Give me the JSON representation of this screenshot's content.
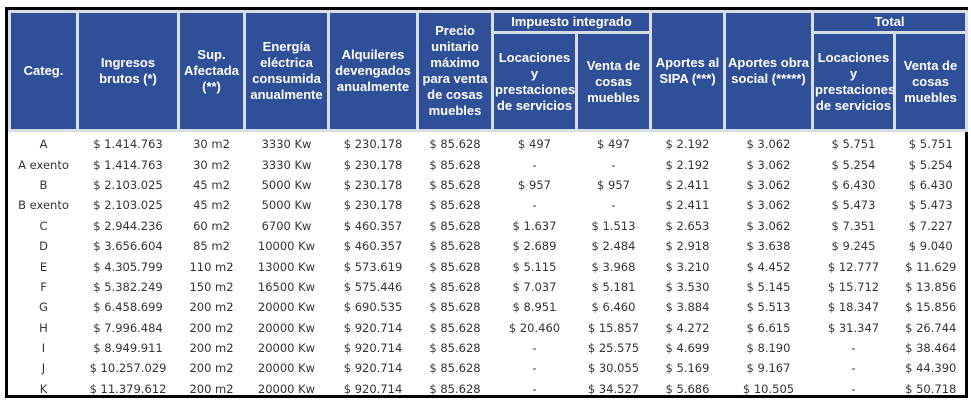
{
  "headers": {
    "categ": "Categ.",
    "ingresos": "Ingresos brutos (*)",
    "sup": "Sup. Afectada (**)",
    "energia": "Energía eléctrica consumida anualmente",
    "alquileres": "Alquileres devengados anualmente",
    "precio": "Precio unitario máximo para venta de cosas muebles",
    "impuesto_group": "Impuesto integrado",
    "imp_locaciones": "Locaciones y prestaciones de servicios",
    "imp_venta": "Venta de cosas muebles",
    "sipa": "Aportes al SIPA (***)",
    "obra_social": "Aportes obra social (*****)",
    "total_group": "Total",
    "tot_locaciones": "Locaciones y prestaciones de servicios",
    "tot_venta": "Venta de cosas muebles"
  },
  "rows": [
    [
      "A",
      "$ 1.414.763",
      "30 m2",
      "3330 Kw",
      "$ 230.178",
      "$ 85.628",
      "$ 497",
      "$ 497",
      "$ 2.192",
      "$ 3.062",
      "$ 5.751",
      "$ 5.751"
    ],
    [
      "A exento",
      "$ 1.414.763",
      "30 m2",
      "3330 Kw",
      "$ 230.178",
      "$ 85.628",
      "-",
      "-",
      "$ 2.192",
      "$ 3.062",
      "$ 5.254",
      "$ 5.254"
    ],
    [
      "B",
      "$ 2.103.025",
      "45 m2",
      "5000 Kw",
      "$ 230.178",
      "$ 85.628",
      "$ 957",
      "$ 957",
      "$ 2.411",
      "$ 3.062",
      "$ 6.430",
      "$ 6.430"
    ],
    [
      "B exento",
      "$ 2.103.025",
      "45 m2",
      "5000 Kw",
      "$ 230.178",
      "$ 85.628",
      "-",
      "-",
      "$ 2.411",
      "$ 3.062",
      "$ 5.473",
      "$ 5.473"
    ],
    [
      "C",
      "$ 2.944.236",
      "60 m2",
      "6700 Kw",
      "$ 460.357",
      "$ 85.628",
      "$ 1.637",
      "$ 1.513",
      "$ 2.653",
      "$ 3.062",
      "$ 7.351",
      "$ 7.227"
    ],
    [
      "D",
      "$ 3.656.604",
      "85 m2",
      "10000 Kw",
      "$ 460.357",
      "$ 85.628",
      "$ 2.689",
      "$ 2.484",
      "$ 2.918",
      "$ 3.638",
      "$ 9.245",
      "$ 9.040"
    ],
    [
      "E",
      "$ 4.305.799",
      "110 m2",
      "13000 Kw",
      "$ 573.619",
      "$ 85.628",
      "$ 5.115",
      "$ 3.968",
      "$ 3.210",
      "$ 4.452",
      "$ 12.777",
      "$ 11.629"
    ],
    [
      "F",
      "$ 5.382.249",
      "150 m2",
      "16500 Kw",
      "$ 575.446",
      "$ 85.628",
      "$ 7.037",
      "$ 5.181",
      "$ 3.530",
      "$ 5.145",
      "$ 15.712",
      "$ 13.856"
    ],
    [
      "G",
      "$ 6.458.699",
      "200 m2",
      "20000 Kw",
      "$ 690.535",
      "$ 85.628",
      "$ 8.951",
      "$ 6.460",
      "$ 3.884",
      "$ 5.513",
      "$ 18.347",
      "$ 15.856"
    ],
    [
      "H",
      "$ 7.996.484",
      "200 m2",
      "20000 Kw",
      "$ 920.714",
      "$ 85.628",
      "$ 20.460",
      "$ 15.857",
      "$ 4.272",
      "$ 6.615",
      "$ 31.347",
      "$ 26.744"
    ],
    [
      "I",
      "$ 8.949.911",
      "200 m2",
      "20000 Kw",
      "$ 920.714",
      "$ 85.628",
      "-",
      "$ 25.575",
      "$ 4.699",
      "$ 8.190",
      "-",
      "$ 38.464"
    ],
    [
      "J",
      "$ 10.257.029",
      "200 m2",
      "20000 Kw",
      "$ 920.714",
      "$ 85.628",
      "-",
      "$ 30.055",
      "$ 5.169",
      "$ 9.167",
      "-",
      "$ 44.390"
    ],
    [
      "K",
      "$ 11.379.612",
      "200 m2",
      "20000 Kw",
      "$ 920.714",
      "$ 85.628",
      "-",
      "$ 34.527",
      "$ 5.686",
      "$ 10.505",
      "-",
      "$ 50.718"
    ]
  ]
}
